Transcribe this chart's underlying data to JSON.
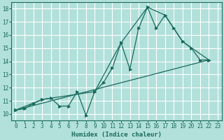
{
  "title": "",
  "xlabel": "Humidex (Indice chaleur)",
  "background_color": "#b2e0da",
  "grid_color": "#ffffff",
  "line_color": "#1a6b5e",
  "xlim": [
    -0.5,
    23.5
  ],
  "ylim": [
    9.5,
    18.5
  ],
  "xticks": [
    0,
    1,
    2,
    3,
    4,
    5,
    6,
    7,
    8,
    9,
    10,
    11,
    12,
    13,
    14,
    15,
    16,
    17,
    18,
    19,
    20,
    21,
    22,
    23
  ],
  "yticks": [
    10,
    11,
    12,
    13,
    14,
    15,
    16,
    17,
    18
  ],
  "series_main": [
    [
      0,
      10.3
    ],
    [
      1,
      10.4
    ],
    [
      2,
      10.8
    ],
    [
      3,
      11.1
    ],
    [
      4,
      11.2
    ],
    [
      5,
      10.6
    ],
    [
      6,
      10.6
    ],
    [
      7,
      11.7
    ],
    [
      8,
      9.9
    ],
    [
      9,
      11.7
    ],
    [
      10,
      12.4
    ],
    [
      11,
      13.5
    ],
    [
      12,
      15.4
    ],
    [
      13,
      13.4
    ],
    [
      14,
      16.5
    ],
    [
      15,
      18.1
    ],
    [
      16,
      16.5
    ],
    [
      17,
      17.5
    ],
    [
      18,
      16.5
    ],
    [
      19,
      15.5
    ],
    [
      20,
      15.0
    ],
    [
      21,
      14.1
    ],
    [
      22,
      14.1
    ]
  ],
  "series_straight": [
    [
      0,
      10.3
    ],
    [
      22,
      14.1
    ]
  ],
  "series_mid": [
    [
      0,
      10.3
    ],
    [
      3,
      11.1
    ],
    [
      9,
      11.7
    ],
    [
      12,
      15.4
    ],
    [
      15,
      18.1
    ],
    [
      17,
      17.5
    ],
    [
      19,
      15.5
    ],
    [
      22,
      14.1
    ]
  ]
}
